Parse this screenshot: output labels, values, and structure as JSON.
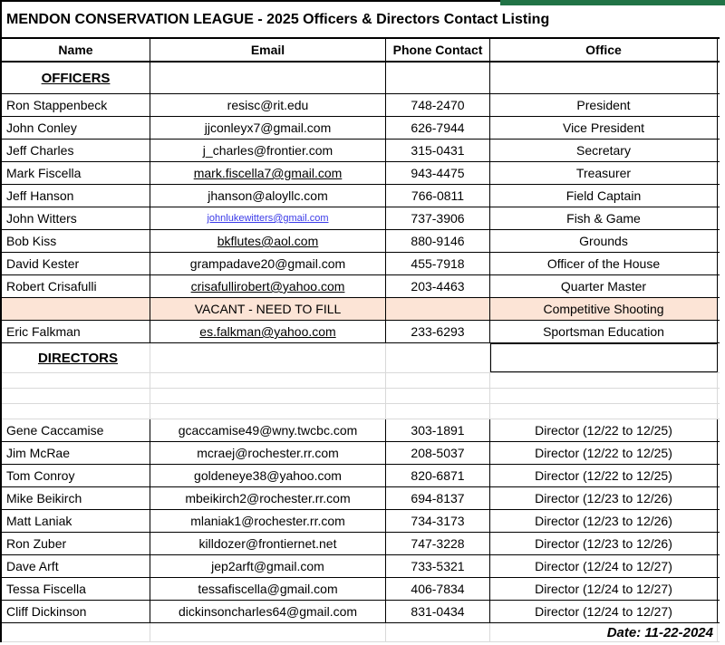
{
  "sheet": {
    "title": "MENDON CONSERVATION  LEAGUE - 2025 Officers & Directors Contact Listing",
    "columns": {
      "name": "Name",
      "email": "Email",
      "phone": "Phone Contact",
      "office": "Office"
    },
    "section_officers": "OFFICERS",
    "section_directors": "DIRECTORS",
    "date": "Date: 11-22-2024",
    "colors": {
      "accent_green": "#217346",
      "vacant_bg": "#FCE4D6",
      "link_blue": "#3A3AE8",
      "border_black": "#000000",
      "gridline_gray": "#d9d9d9"
    }
  },
  "officers": [
    {
      "name": "Ron Stappenbeck",
      "email": "resisc@rit.edu",
      "phone": "748-2470",
      "office": "President",
      "email_style": "plain"
    },
    {
      "name": "John Conley",
      "email": "jjconleyx7@gmail.com",
      "phone": "626-7944",
      "office": "Vice President",
      "email_style": "plain"
    },
    {
      "name": "Jeff Charles",
      "email": "j_charles@frontier.com",
      "phone": "315-0431",
      "office": "Secretary",
      "email_style": "plain"
    },
    {
      "name": "Mark Fiscella",
      "email": "mark.fiscella7@gmail.com",
      "phone": "943-4475",
      "office": "Treasurer",
      "email_style": "underline"
    },
    {
      "name": "Jeff Hanson",
      "email": "jhanson@aloyllc.com",
      "phone": "766-0811",
      "office": "Field Captain",
      "email_style": "plain"
    },
    {
      "name": "John Witters",
      "email": "johnlukewitters@gmail.com",
      "phone": "737-3906",
      "office": "Fish & Game",
      "email_style": "link"
    },
    {
      "name": "Bob Kiss",
      "email": "bkflutes@aol.com",
      "phone": "880-9146",
      "office": "Grounds",
      "email_style": "underline"
    },
    {
      "name": "David Kester",
      "email": "grampadave20@gmail.com",
      "phone": "455-7918",
      "office": "Officer of the House",
      "email_style": "plain"
    },
    {
      "name": "Robert Crisafulli",
      "email": "crisafullirobert@yahoo.com",
      "phone": "203-4463",
      "office": "Quarter Master",
      "email_style": "underline"
    },
    {
      "name": "",
      "email": "VACANT - NEED TO FILL",
      "phone": "",
      "office": "Competitive Shooting",
      "email_style": "plain",
      "vacant": true
    },
    {
      "name": "Eric Falkman",
      "email": "es.falkman@yahoo.com",
      "phone": "233-6293",
      "office": "Sportsman Education",
      "email_style": "underline"
    }
  ],
  "directors": [
    {
      "name": "Gene Caccamise",
      "email": "gcaccamise49@wny.twcbc.com",
      "phone": "303-1891",
      "office": "Director (12/22 to 12/25)",
      "email_style": "plain"
    },
    {
      "name": "Jim McRae",
      "email": "mcraej@rochester.rr.com",
      "phone": "208-5037",
      "office": "Director (12/22 to 12/25)",
      "email_style": "plain"
    },
    {
      "name": "Tom Conroy",
      "email": "goldeneye38@yahoo.com",
      "phone": "820-6871",
      "office": "Director (12/22 to 12/25)",
      "email_style": "plain"
    },
    {
      "name": "Mike Beikirch",
      "email": "mbeikirch2@rochester.rr.com",
      "phone": "694-8137",
      "office": "Director (12/23 to 12/26)",
      "email_style": "plain"
    },
    {
      "name": "Matt Laniak",
      "email": "mlaniak1@rochester.rr.com",
      "phone": "734-3173",
      "office": "Director (12/23 to 12/26)",
      "email_style": "plain"
    },
    {
      "name": "Ron Zuber",
      "email": "killdozer@frontiernet.net",
      "phone": "747-3228",
      "office": "Director (12/23 to 12/26)",
      "email_style": "plain"
    },
    {
      "name": "Dave Arft",
      "email": "jep2arft@gmail.com",
      "phone": "733-5321",
      "office": "Director (12/24 to 12/27)",
      "email_style": "plain"
    },
    {
      "name": "Tessa Fiscella",
      "email": "tessafiscella@gmail.com",
      "phone": "406-7834",
      "office": "Director (12/24 to 12/27)",
      "email_style": "plain"
    },
    {
      "name": "Cliff Dickinson",
      "email": "dickinsoncharles64@gmail.com",
      "phone": "831-0434",
      "office": "Director (12/24 to 12/27)",
      "email_style": "plain"
    }
  ]
}
